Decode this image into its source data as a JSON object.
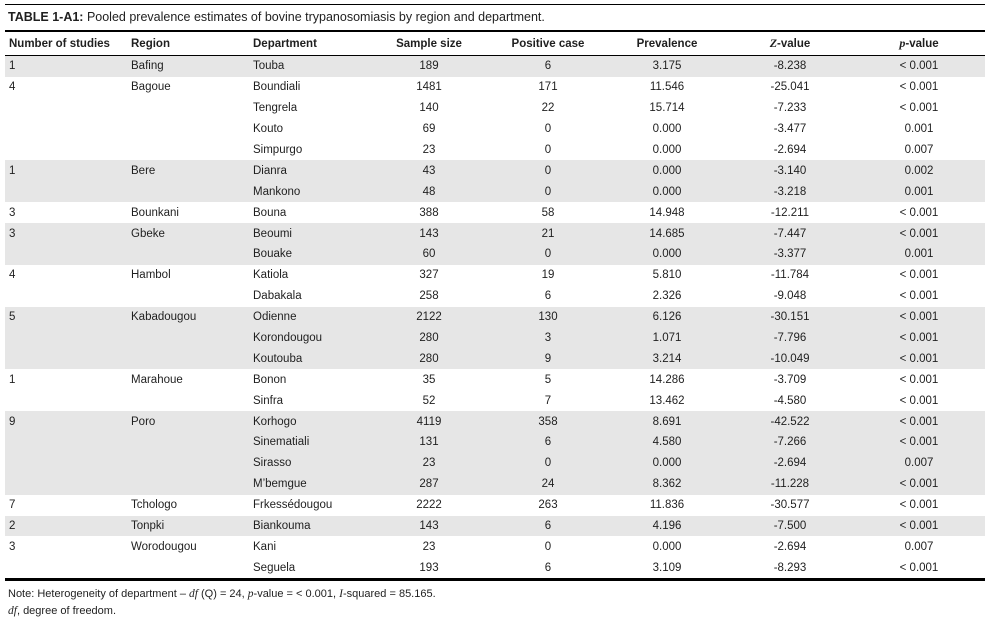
{
  "title": {
    "label": "TABLE 1-A1:",
    "text": " Pooled prevalence estimates of bovine trypanosomiasis by region and department."
  },
  "colors": {
    "shaded_row": "#e6e6e6",
    "text": "#1f1f1f",
    "rule": "#000000"
  },
  "table": {
    "columns": [
      {
        "name": "number-of-studies",
        "align": "left",
        "segments": [
          {
            "text": "Number of studies"
          }
        ]
      },
      {
        "name": "region",
        "align": "left",
        "segments": [
          {
            "text": "Region"
          }
        ]
      },
      {
        "name": "department",
        "align": "left",
        "segments": [
          {
            "text": "Department"
          }
        ]
      },
      {
        "name": "sample-size",
        "align": "center",
        "segments": [
          {
            "text": "Sample size"
          }
        ]
      },
      {
        "name": "positive-case",
        "align": "center",
        "segments": [
          {
            "text": "Positive case"
          }
        ]
      },
      {
        "name": "prevalence",
        "align": "center",
        "segments": [
          {
            "text": "Prevalence"
          }
        ]
      },
      {
        "name": "z-value",
        "align": "center",
        "segments": [
          {
            "text": "Z",
            "italic": true
          },
          {
            "text": "-value"
          }
        ]
      },
      {
        "name": "p-value",
        "align": "center",
        "segments": [
          {
            "text": "p",
            "italic": true
          },
          {
            "text": "-value"
          }
        ]
      }
    ],
    "rows": [
      {
        "shaded": true,
        "cells": [
          "1",
          "Bafing",
          "Touba",
          "189",
          "6",
          "3.175",
          "-8.238",
          "< 0.001"
        ]
      },
      {
        "shaded": false,
        "cells": [
          "4",
          "Bagoue",
          "Boundiali",
          "1481",
          "171",
          "11.546",
          "-25.041",
          "< 0.001"
        ]
      },
      {
        "shaded": false,
        "cells": [
          "",
          "",
          "Tengrela",
          "140",
          "22",
          "15.714",
          "-7.233",
          "< 0.001"
        ]
      },
      {
        "shaded": false,
        "cells": [
          "",
          "",
          "Kouto",
          "69",
          "0",
          "0.000",
          "-3.477",
          "0.001"
        ]
      },
      {
        "shaded": false,
        "cells": [
          "",
          "",
          "Simpurgo",
          "23",
          "0",
          "0.000",
          "-2.694",
          "0.007"
        ]
      },
      {
        "shaded": true,
        "cells": [
          "1",
          "Bere",
          "Dianra",
          "43",
          "0",
          "0.000",
          "-3.140",
          "0.002"
        ]
      },
      {
        "shaded": true,
        "cells": [
          "",
          "",
          "Mankono",
          "48",
          "0",
          "0.000",
          "-3.218",
          "0.001"
        ]
      },
      {
        "shaded": false,
        "cells": [
          "3",
          "Bounkani",
          "Bouna",
          "388",
          "58",
          "14.948",
          "-12.211",
          "< 0.001"
        ]
      },
      {
        "shaded": true,
        "cells": [
          "3",
          "Gbeke",
          "Beoumi",
          "143",
          "21",
          "14.685",
          "-7.447",
          "< 0.001"
        ]
      },
      {
        "shaded": true,
        "cells": [
          "",
          "",
          "Bouake",
          "60",
          "0",
          "0.000",
          "-3.377",
          "0.001"
        ]
      },
      {
        "shaded": false,
        "cells": [
          "4",
          "Hambol",
          "Katiola",
          "327",
          "19",
          "5.810",
          "-11.784",
          "< 0.001"
        ]
      },
      {
        "shaded": false,
        "cells": [
          "",
          "",
          "Dabakala",
          "258",
          "6",
          "2.326",
          "-9.048",
          "< 0.001"
        ]
      },
      {
        "shaded": true,
        "cells": [
          "5",
          "Kabadougou",
          "Odienne",
          "2122",
          "130",
          "6.126",
          "-30.151",
          "< 0.001"
        ]
      },
      {
        "shaded": true,
        "cells": [
          "",
          "",
          "Korondougou",
          "280",
          "3",
          "1.071",
          "-7.796",
          "< 0.001"
        ]
      },
      {
        "shaded": true,
        "cells": [
          "",
          "",
          "Koutouba",
          "280",
          "9",
          "3.214",
          "-10.049",
          "< 0.001"
        ]
      },
      {
        "shaded": false,
        "cells": [
          "1",
          "Marahoue",
          "Bonon",
          "35",
          "5",
          "14.286",
          "-3.709",
          "< 0.001"
        ]
      },
      {
        "shaded": false,
        "cells": [
          "",
          "",
          "Sinfra",
          "52",
          "7",
          "13.462",
          "-4.580",
          "< 0.001"
        ]
      },
      {
        "shaded": true,
        "cells": [
          "9",
          "Poro",
          "Korhogo",
          "4119",
          "358",
          "8.691",
          "-42.522",
          "< 0.001"
        ]
      },
      {
        "shaded": true,
        "cells": [
          "",
          "",
          "Sinematiali",
          "131",
          "6",
          "4.580",
          "-7.266",
          "< 0.001"
        ]
      },
      {
        "shaded": true,
        "cells": [
          "",
          "",
          "Sirasso",
          "23",
          "0",
          "0.000",
          "-2.694",
          "0.007"
        ]
      },
      {
        "shaded": true,
        "cells": [
          "",
          "",
          "M’bemgue",
          "287",
          "24",
          "8.362",
          "-11.228",
          "< 0.001"
        ]
      },
      {
        "shaded": false,
        "cells": [
          "7",
          "Tchologo",
          "Frkessédougou",
          "2222",
          "263",
          "11.836",
          "-30.577",
          "< 0.001"
        ]
      },
      {
        "shaded": true,
        "cells": [
          "2",
          "Tonpki",
          "Biankouma",
          "143",
          "6",
          "4.196",
          "-7.500",
          "< 0.001"
        ]
      },
      {
        "shaded": false,
        "cells": [
          "3",
          "Worodougou",
          "Kani",
          "23",
          "0",
          "0.000",
          "-2.694",
          "0.007"
        ]
      },
      {
        "shaded": false,
        "cells": [
          "",
          "",
          "Seguela",
          "193",
          "6",
          "3.109",
          "-8.293",
          "< 0.001"
        ]
      }
    ]
  },
  "notes": [
    {
      "name": "note-heterogeneity",
      "segments": [
        {
          "text": "Note: Heterogeneity of department – "
        },
        {
          "text": "df",
          "italic": true
        },
        {
          "text": " (Q) = 24, "
        },
        {
          "text": "p",
          "italic": true
        },
        {
          "text": "-value = < 0.001, "
        },
        {
          "text": "I",
          "italic": true
        },
        {
          "text": "-squared = 85.165."
        }
      ]
    },
    {
      "name": "note-df",
      "segments": [
        {
          "text": "df",
          "italic": true
        },
        {
          "text": ", degree of freedom."
        }
      ]
    }
  ]
}
